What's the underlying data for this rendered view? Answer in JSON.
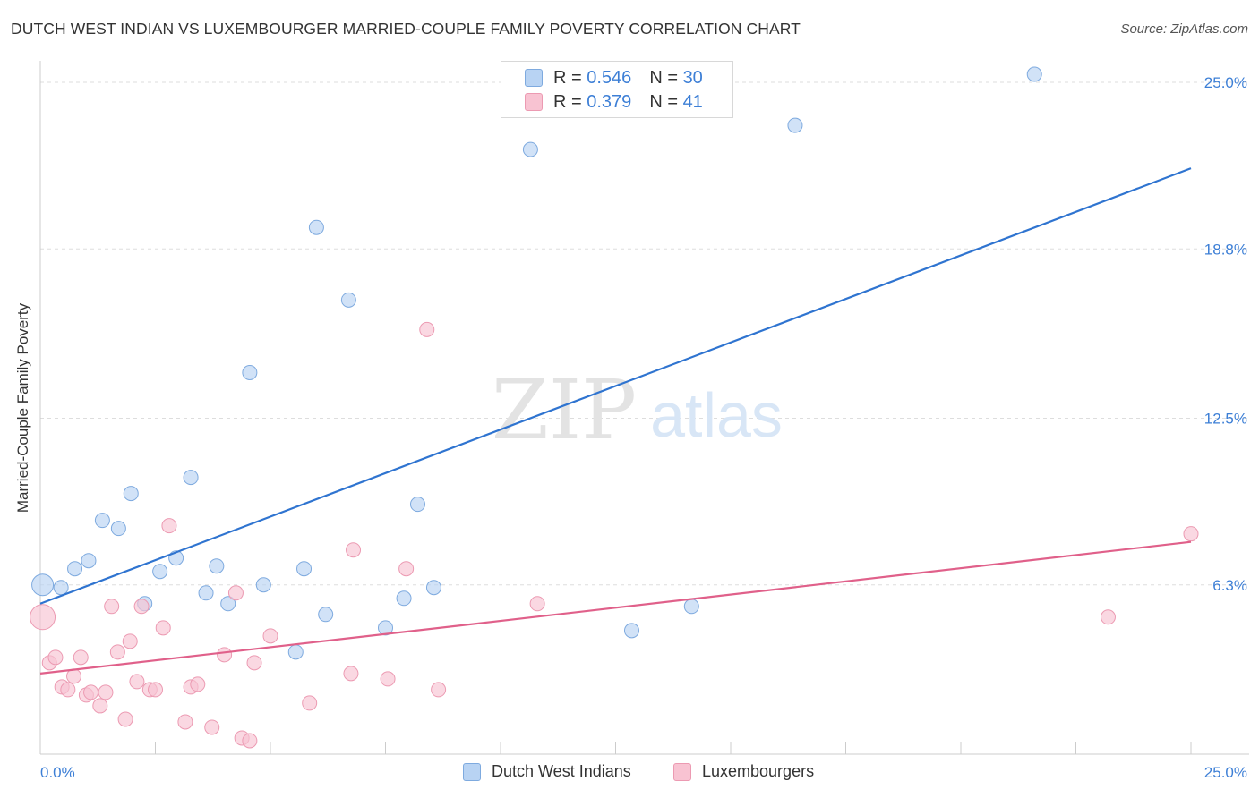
{
  "title": "DUTCH WEST INDIAN VS LUXEMBOURGER MARRIED-COUPLE FAMILY POVERTY CORRELATION CHART",
  "source": "Source: ZipAtlas.com",
  "watermark": {
    "zip": "ZIP",
    "atlas": "atlas"
  },
  "colors": {
    "blue_fill": "#b8d3f3",
    "blue_stroke": "#7eaadf",
    "blue_line": "#2f74d0",
    "pink_fill": "#f8c3d2",
    "pink_stroke": "#ec9ab2",
    "pink_line": "#e0608a",
    "axis_label": "#3d7fd6",
    "grid": "#dddddd"
  },
  "legend_top": [
    {
      "r_label": "R = ",
      "r": "0.546",
      "n_label": "N = ",
      "n": "30",
      "series": "blue"
    },
    {
      "r_label": "R = ",
      "r": "0.379",
      "n_label": "N = ",
      "n": "41",
      "series": "pink"
    }
  ],
  "legend_bottom": [
    "Dutch West Indians",
    "Luxembourgers"
  ],
  "chart_data": {
    "type": "scatter",
    "title": "DUTCH WEST INDIAN VS LUXEMBOURGER MARRIED-COUPLE FAMILY POVERTY CORRELATION CHART",
    "xlabel": "",
    "ylabel": "Married-Couple Family Poverty",
    "xlim": [
      0,
      25
    ],
    "ylim": [
      0,
      25.5
    ],
    "x_tick_labels": [
      "0.0%",
      "25.0%"
    ],
    "y_ticks": [
      6.3,
      12.5,
      18.8,
      25.0
    ],
    "y_tick_labels": [
      "6.3%",
      "12.5%",
      "18.8%",
      "25.0%"
    ],
    "grid": true,
    "series": [
      {
        "name": "Dutch West Indians",
        "r": 0.546,
        "n": 30,
        "trend": [
          [
            0,
            5.6
          ],
          [
            25,
            21.8
          ]
        ],
        "points": [
          [
            0.05,
            6.3,
            12
          ],
          [
            0.45,
            6.2,
            8
          ],
          [
            0.75,
            6.9,
            8
          ],
          [
            1.05,
            7.2,
            8
          ],
          [
            1.35,
            8.7,
            8
          ],
          [
            1.7,
            8.4,
            8
          ],
          [
            1.97,
            9.7,
            8
          ],
          [
            2.27,
            5.6,
            8
          ],
          [
            2.6,
            6.8,
            8
          ],
          [
            2.95,
            7.3,
            8
          ],
          [
            3.27,
            10.3,
            8
          ],
          [
            3.6,
            6.0,
            8
          ],
          [
            3.83,
            7.0,
            8
          ],
          [
            4.08,
            5.6,
            8
          ],
          [
            4.55,
            14.2,
            8
          ],
          [
            4.85,
            6.3,
            8
          ],
          [
            5.55,
            3.8,
            8
          ],
          [
            5.73,
            6.9,
            8
          ],
          [
            6.0,
            19.6,
            8
          ],
          [
            6.2,
            5.2,
            8
          ],
          [
            6.7,
            16.9,
            8
          ],
          [
            7.5,
            4.7,
            8
          ],
          [
            7.9,
            5.8,
            8
          ],
          [
            8.2,
            9.3,
            8
          ],
          [
            8.55,
            6.2,
            8
          ],
          [
            10.65,
            22.5,
            8
          ],
          [
            12.85,
            4.6,
            8
          ],
          [
            14.15,
            5.5,
            8
          ],
          [
            16.4,
            23.4,
            8
          ],
          [
            21.6,
            25.3,
            8
          ]
        ]
      },
      {
        "name": "Luxembourgers",
        "r": 0.379,
        "n": 41,
        "trend": [
          [
            0,
            3.0
          ],
          [
            25,
            7.9
          ]
        ],
        "points": [
          [
            0.05,
            5.1,
            14
          ],
          [
            0.2,
            3.4,
            8
          ],
          [
            0.33,
            3.6,
            8
          ],
          [
            0.47,
            2.5,
            8
          ],
          [
            0.6,
            2.4,
            8
          ],
          [
            0.73,
            2.9,
            8
          ],
          [
            0.88,
            3.6,
            8
          ],
          [
            1.0,
            2.2,
            8
          ],
          [
            1.1,
            2.3,
            8
          ],
          [
            1.3,
            1.8,
            8
          ],
          [
            1.42,
            2.3,
            8
          ],
          [
            1.55,
            5.5,
            8
          ],
          [
            1.68,
            3.8,
            8
          ],
          [
            1.85,
            1.3,
            8
          ],
          [
            1.95,
            4.2,
            8
          ],
          [
            2.1,
            2.7,
            8
          ],
          [
            2.2,
            5.5,
            8
          ],
          [
            2.38,
            2.4,
            8
          ],
          [
            2.5,
            2.4,
            8
          ],
          [
            2.67,
            4.7,
            8
          ],
          [
            2.8,
            8.5,
            8
          ],
          [
            3.15,
            1.2,
            8
          ],
          [
            3.27,
            2.5,
            8
          ],
          [
            3.42,
            2.6,
            8
          ],
          [
            3.73,
            1.0,
            8
          ],
          [
            4.0,
            3.7,
            8
          ],
          [
            4.25,
            6.0,
            8
          ],
          [
            4.38,
            0.6,
            8
          ],
          [
            4.55,
            0.5,
            8
          ],
          [
            4.65,
            3.4,
            8
          ],
          [
            5.0,
            4.4,
            8
          ],
          [
            5.85,
            1.9,
            8
          ],
          [
            6.75,
            3.0,
            8
          ],
          [
            6.8,
            7.6,
            8
          ],
          [
            7.55,
            2.8,
            8
          ],
          [
            7.95,
            6.9,
            8
          ],
          [
            8.4,
            15.8,
            8
          ],
          [
            8.65,
            2.4,
            8
          ],
          [
            10.8,
            5.6,
            8
          ],
          [
            23.2,
            5.1,
            8
          ],
          [
            25.0,
            8.2,
            8
          ]
        ]
      }
    ]
  }
}
